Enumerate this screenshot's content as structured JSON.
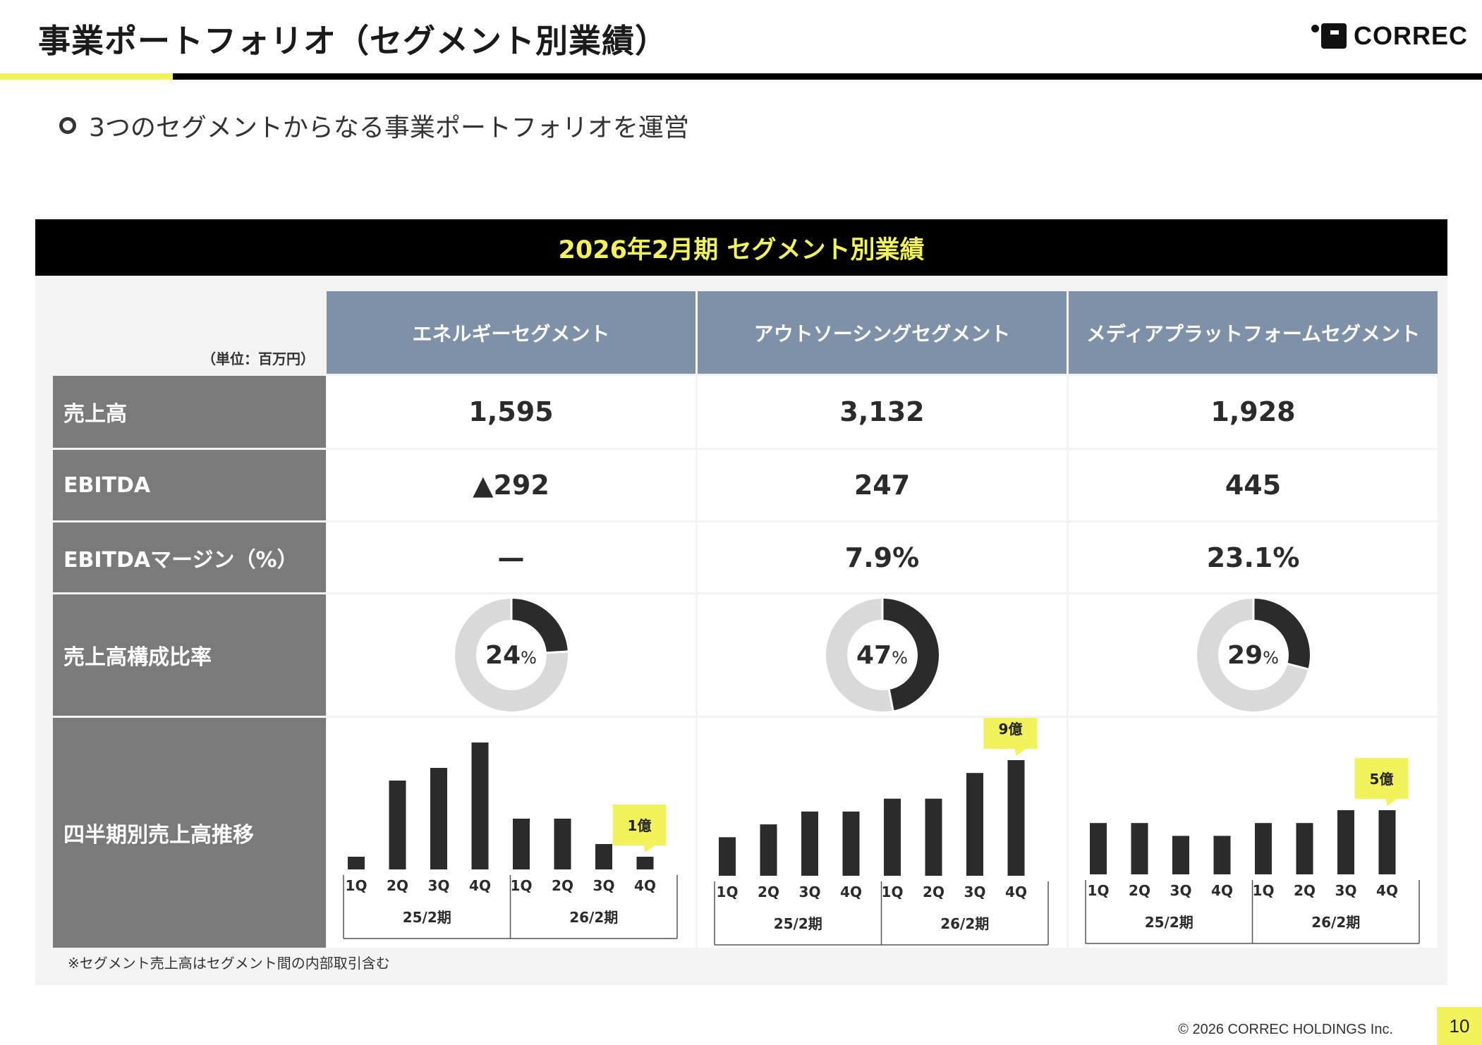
{
  "header": {
    "title": "事業ポートフォリオ（セグメント別業績）",
    "logo_text": "CORREC"
  },
  "lead": "3つのセグメントからなる事業ポートフォリオを運営",
  "table": {
    "banner": "2026年2月期 セグメント別業績",
    "unit": "（単位：百万円）",
    "columns": [
      "エネルギーセグメント",
      "アウトソーシングセグメント",
      "メディアプラットフォームセグメント"
    ],
    "rows": [
      {
        "label": "売上高",
        "values": [
          "1,595",
          "3,132",
          "1,928"
        ]
      },
      {
        "label": "EBITDA",
        "values": [
          "▲292",
          "247",
          "445"
        ]
      },
      {
        "label": "EBITDAマージン（%）",
        "values": [
          "—",
          "7.9%",
          "23.1%"
        ]
      },
      {
        "label": "売上高構成比率"
      },
      {
        "label": "四半期別売上高推移"
      }
    ],
    "composition": [
      {
        "value": 24,
        "label": "24",
        "unit": "%"
      },
      {
        "value": 47,
        "label": "47",
        "unit": "%"
      },
      {
        "value": 29,
        "label": "29",
        "unit": "%"
      }
    ]
  },
  "colors": {
    "accent_yellow": "#f2f25c",
    "header_blue_gray": "#7f91a9",
    "row_label_gray": "#7a7a7a",
    "bar_dark": "#2b2b2b",
    "donut_light": "#d9d9d9"
  },
  "chart_data": [
    {
      "type": "bar",
      "segment": "エネルギーセグメント",
      "categories": [
        "1Q",
        "2Q",
        "3Q",
        "4Q",
        "1Q",
        "2Q",
        "3Q",
        "4Q"
      ],
      "groups": [
        {
          "label": "25/2期",
          "count": 4
        },
        {
          "label": "26/2期",
          "count": 4
        }
      ],
      "values": [
        1,
        7,
        8,
        10,
        4,
        4,
        2,
        1
      ],
      "annotation": {
        "text": "1億",
        "index": 7,
        "unit": "億"
      }
    },
    {
      "type": "bar",
      "segment": "アウトソーシングセグメント",
      "categories": [
        "1Q",
        "2Q",
        "3Q",
        "4Q",
        "1Q",
        "2Q",
        "3Q",
        "4Q"
      ],
      "groups": [
        {
          "label": "25/2期",
          "count": 4
        },
        {
          "label": "26/2期",
          "count": 4
        }
      ],
      "values": [
        3,
        4,
        5,
        5,
        6,
        6,
        8,
        9
      ],
      "annotation": {
        "text": "9億",
        "index": 7,
        "unit": "億"
      }
    },
    {
      "type": "bar",
      "segment": "メディアプラットフォームセグメント",
      "categories": [
        "1Q",
        "2Q",
        "3Q",
        "4Q",
        "1Q",
        "2Q",
        "3Q",
        "4Q"
      ],
      "groups": [
        {
          "label": "25/2期",
          "count": 4
        },
        {
          "label": "26/2期",
          "count": 4
        }
      ],
      "values": [
        4,
        4,
        3,
        3,
        4,
        4,
        5,
        5
      ],
      "annotation": {
        "text": "5億",
        "index": 7,
        "unit": "億"
      }
    }
  ],
  "footnote": "※セグメント売上高はセグメント間の内部取引含む",
  "footer": {
    "copyright": "© 2026 CORREC HOLDINGS Inc.",
    "page_number": "10"
  }
}
